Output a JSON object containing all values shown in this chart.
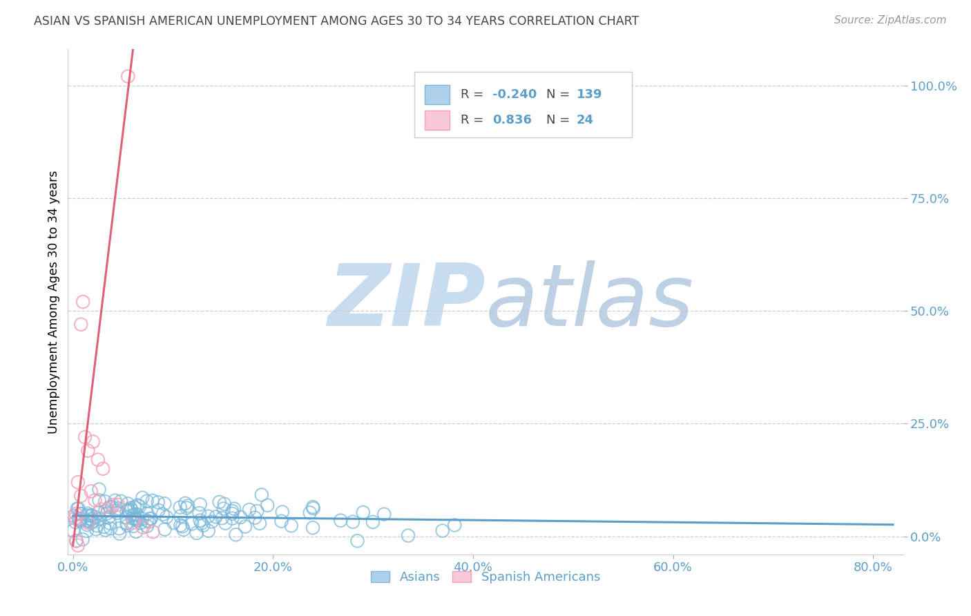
{
  "title": "ASIAN VS SPANISH AMERICAN UNEMPLOYMENT AMONG AGES 30 TO 34 YEARS CORRELATION CHART",
  "source": "Source: ZipAtlas.com",
  "ylabel": "Unemployment Among Ages 30 to 34 years",
  "xlabel_ticks": [
    "0.0%",
    "20.0%",
    "40.0%",
    "60.0%",
    "80.0%"
  ],
  "xlabel_vals": [
    0.0,
    0.2,
    0.4,
    0.6,
    0.8
  ],
  "ylabel_ticks": [
    "0.0%",
    "25.0%",
    "50.0%",
    "75.0%",
    "100.0%"
  ],
  "ylabel_vals": [
    0.0,
    0.25,
    0.5,
    0.75,
    1.0
  ],
  "xlim": [
    -0.005,
    0.83
  ],
  "ylim": [
    -0.04,
    1.08
  ],
  "asian_R": -0.24,
  "asian_N": 139,
  "spanish_R": 0.836,
  "spanish_N": 24,
  "asian_color": "#7ab8d9",
  "asian_color_fill": "#aed0e8",
  "spanish_color": "#f4a0b8",
  "spanish_line_color": "#e0607a",
  "asian_line_color": "#5b9ec9",
  "title_color": "#444444",
  "source_color": "#999999",
  "axis_color": "#5b9ec9",
  "watermark_zip_color": "#ccdff0",
  "watermark_atlas_color": "#c8d8e8",
  "grid_color": "#cccccc",
  "legend_text_color": "#5b9ec9",
  "legend_border_color": "#cccccc",
  "bg_color": "#ffffff"
}
